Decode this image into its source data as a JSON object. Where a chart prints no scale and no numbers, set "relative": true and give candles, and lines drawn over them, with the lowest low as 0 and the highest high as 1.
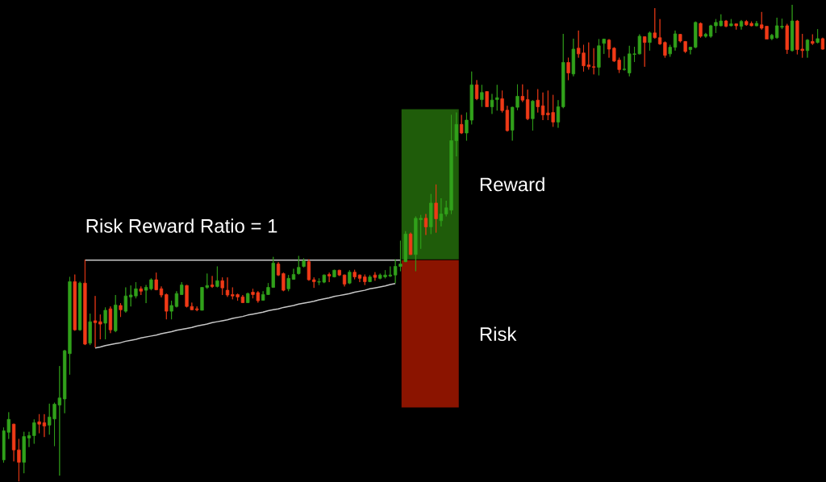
{
  "chart_data": {
    "type": "candlestick",
    "relative": true,
    "categories": [
      null,
      null,
      null,
      null,
      null,
      null,
      null,
      null,
      null,
      null,
      null,
      null,
      null,
      null,
      null,
      null,
      null,
      null,
      null,
      null,
      null,
      null,
      null,
      null,
      null,
      null,
      null,
      null,
      null,
      null,
      null,
      null,
      null,
      null,
      null,
      null,
      null,
      null,
      null,
      null,
      null,
      null,
      null,
      null,
      null,
      null,
      null,
      null,
      null,
      null,
      null,
      null,
      null,
      null,
      null,
      null,
      null,
      null,
      null,
      null,
      null,
      null,
      null,
      null,
      null,
      null,
      null,
      null,
      null,
      null,
      null,
      null,
      null,
      null,
      null,
      null,
      null,
      null,
      null,
      null,
      null,
      null,
      null,
      null,
      null,
      null,
      null,
      null,
      null,
      null,
      null,
      null,
      null,
      null,
      null,
      null,
      null,
      null,
      null,
      null,
      null,
      null,
      null,
      null,
      null,
      null,
      null,
      null,
      null,
      null,
      null,
      null,
      null,
      null,
      null,
      null,
      null,
      null,
      null,
      null,
      null,
      null,
      null,
      null,
      null,
      null,
      null,
      null,
      null,
      null,
      null,
      null,
      null,
      null,
      null,
      null,
      null,
      null,
      null,
      null,
      null,
      null,
      null,
      null,
      null,
      null,
      null,
      null,
      null,
      null,
      null,
      null,
      null,
      null,
      null,
      null,
      null,
      null,
      null,
      null,
      null,
      null
    ],
    "ohlc": [
      [
        0.045,
        0.113,
        0.039,
        0.106
      ],
      [
        0.103,
        0.145,
        0.089,
        0.13
      ],
      [
        0.12,
        0.121,
        0.042,
        0.066
      ],
      [
        0.066,
        0.089,
        0,
        0.04
      ],
      [
        0.04,
        0.104,
        0.017,
        0.094
      ],
      [
        0.091,
        0.104,
        0.072,
        0.096
      ],
      [
        0.096,
        0.13,
        0.079,
        0.123
      ],
      [
        0.125,
        0.141,
        0.101,
        0.12
      ],
      [
        0.123,
        0.141,
        0.093,
        0.116
      ],
      [
        0.118,
        0.163,
        0.098,
        0.135
      ],
      [
        0.131,
        0.165,
        0.074,
        0.162
      ],
      [
        0.16,
        0.242,
        0.012,
        0.175
      ],
      [
        0.173,
        0.276,
        0.143,
        0.274
      ],
      [
        0.268,
        0.429,
        0.224,
        0.419
      ],
      [
        0.419,
        0.434,
        0.316,
        0.318
      ],
      [
        0.318,
        0.419,
        0.316,
        0.416
      ],
      [
        0.416,
        0.465,
        0.286,
        0.288
      ],
      [
        0.29,
        0.352,
        0.286,
        0.335
      ],
      [
        0.337,
        0.389,
        0.281,
        0.333
      ],
      [
        0.335,
        0.35,
        0.298,
        0.33
      ],
      [
        0.332,
        0.365,
        0.298,
        0.359
      ],
      [
        0.362,
        0.367,
        0.311,
        0.318
      ],
      [
        0.316,
        0.391,
        0.313,
        0.37
      ],
      [
        0.369,
        0.374,
        0.345,
        0.36
      ],
      [
        0.357,
        0.407,
        0.354,
        0.389
      ],
      [
        0.387,
        0.411,
        0.367,
        0.391
      ],
      [
        0.389,
        0.418,
        0.384,
        0.404
      ],
      [
        0.404,
        0.409,
        0.391,
        0.399
      ],
      [
        0.401,
        0.412,
        0.374,
        0.407
      ],
      [
        0.404,
        0.426,
        0.401,
        0.423
      ],
      [
        0.423,
        0.438,
        0.401,
        0.402
      ],
      [
        0.404,
        0.409,
        0.386,
        0.391
      ],
      [
        0.392,
        0.394,
        0.34,
        0.357
      ],
      [
        0.357,
        0.379,
        0.34,
        0.369
      ],
      [
        0.367,
        0.399,
        0.365,
        0.394
      ],
      [
        0.392,
        0.418,
        0.391,
        0.412
      ],
      [
        0.411,
        0.412,
        0.365,
        0.367
      ],
      [
        0.367,
        0.375,
        0.359,
        0.36
      ],
      [
        0.362,
        0.367,
        0.357,
        0.36
      ],
      [
        0.359,
        0.407,
        0.359,
        0.407
      ],
      [
        0.407,
        0.436,
        0.404,
        0.411
      ],
      [
        0.412,
        0.431,
        0.406,
        0.409
      ],
      [
        0.409,
        0.451,
        0.407,
        0.421
      ],
      [
        0.421,
        0.428,
        0.391,
        0.406
      ],
      [
        0.401,
        0.428,
        0.387,
        0.391
      ],
      [
        0.392,
        0.407,
        0.382,
        0.389
      ],
      [
        0.392,
        0.394,
        0.379,
        0.387
      ],
      [
        0.387,
        0.391,
        0.374,
        0.375
      ],
      [
        0.375,
        0.396,
        0.374,
        0.394
      ],
      [
        0.397,
        0.404,
        0.384,
        0.392
      ],
      [
        0.396,
        0.399,
        0.375,
        0.379
      ],
      [
        0.38,
        0.399,
        0.379,
        0.392
      ],
      [
        0.392,
        0.416,
        0.391,
        0.407
      ],
      [
        0.407,
        0.471,
        0.406,
        0.458
      ],
      [
        0.456,
        0.46,
        0.431,
        0.433
      ],
      [
        0.436,
        0.438,
        0.399,
        0.401
      ],
      [
        0.404,
        0.433,
        0.399,
        0.426
      ],
      [
        0.424,
        0.446,
        0.423,
        0.434
      ],
      [
        0.436,
        0.473,
        0.434,
        0.449
      ],
      [
        0.451,
        0.468,
        0.449,
        0.463
      ],
      [
        0.461,
        0.466,
        0.421,
        0.423
      ],
      [
        0.423,
        0.428,
        0.406,
        0.419
      ],
      [
        0.418,
        0.426,
        0.412,
        0.419
      ],
      [
        0.418,
        0.434,
        0.416,
        0.433
      ],
      [
        0.434,
        0.438,
        0.418,
        0.431
      ],
      [
        0.429,
        0.444,
        0.428,
        0.443
      ],
      [
        0.443,
        0.444,
        0.431,
        0.433
      ],
      [
        0.433,
        0.434,
        0.409,
        0.414
      ],
      [
        0.416,
        0.443,
        0.414,
        0.439
      ],
      [
        0.439,
        0.444,
        0.424,
        0.429
      ],
      [
        0.433,
        0.434,
        0.418,
        0.426
      ],
      [
        0.429,
        0.434,
        0.412,
        0.419
      ],
      [
        0.419,
        0.433,
        0.418,
        0.429
      ],
      [
        0.433,
        0.439,
        0.421,
        0.428
      ],
      [
        0.426,
        0.436,
        0.424,
        0.433
      ],
      [
        0.429,
        0.443,
        0.426,
        0.433
      ],
      [
        0.431,
        0.451,
        0.429,
        0.433
      ],
      [
        0.433,
        0.466,
        0.416,
        0.451
      ],
      [
        0.451,
        0.505,
        0.441,
        0.456
      ],
      [
        0.461,
        0.525,
        0.46,
        0.519
      ],
      [
        0.519,
        0.522,
        0.475,
        0.476
      ],
      [
        0.476,
        0.556,
        0.441,
        0.552
      ],
      [
        0.549,
        0.559,
        0.488,
        0.552
      ],
      [
        0.552,
        0.561,
        0.517,
        0.534
      ],
      [
        0.534,
        0.603,
        0.519,
        0.584
      ],
      [
        0.584,
        0.623,
        0.522,
        0.551
      ],
      [
        0.547,
        0.594,
        0.535,
        0.561
      ],
      [
        0.561,
        0.589,
        0.556,
        0.574
      ],
      [
        0.569,
        0.769,
        0.561,
        0.715
      ],
      [
        0.715,
        0.774,
        0.682,
        0.749
      ],
      [
        0.749,
        0.769,
        0.729,
        0.731
      ],
      [
        0.731,
        0.774,
        0.715,
        0.758
      ],
      [
        0.758,
        0.86,
        0.749,
        0.832
      ],
      [
        0.832,
        0.842,
        0.8,
        0.803
      ],
      [
        0.801,
        0.832,
        0.786,
        0.816
      ],
      [
        0.818,
        0.818,
        0.786,
        0.786
      ],
      [
        0.786,
        0.813,
        0.771,
        0.8
      ],
      [
        0.801,
        0.832,
        0.778,
        0.805
      ],
      [
        0.803,
        0.82,
        0.774,
        0.778
      ],
      [
        0.779,
        0.788,
        0.734,
        0.736
      ],
      [
        0.737,
        0.786,
        0.715,
        0.785
      ],
      [
        0.785,
        0.833,
        0.779,
        0.808
      ],
      [
        0.808,
        0.833,
        0.796,
        0.8
      ],
      [
        0.801,
        0.822,
        0.758,
        0.761
      ],
      [
        0.761,
        0.8,
        0.736,
        0.798
      ],
      [
        0.8,
        0.823,
        0.774,
        0.786
      ],
      [
        0.788,
        0.816,
        0.758,
        0.769
      ],
      [
        0.773,
        0.82,
        0.758,
        0.769
      ],
      [
        0.774,
        0.811,
        0.744,
        0.754
      ],
      [
        0.754,
        0.8,
        0.742,
        0.786
      ],
      [
        0.786,
        0.939,
        0.783,
        0.879
      ],
      [
        0.879,
        0.889,
        0.842,
        0.857
      ],
      [
        0.855,
        0.929,
        0.85,
        0.907
      ],
      [
        0.909,
        0.946,
        0.889,
        0.897
      ],
      [
        0.899,
        0.916,
        0.86,
        0.872
      ],
      [
        0.874,
        0.921,
        0.864,
        0.87
      ],
      [
        0.87,
        0.909,
        0.854,
        0.869
      ],
      [
        0.869,
        0.928,
        0.852,
        0.914
      ],
      [
        0.919,
        0.929,
        0.897,
        0.928
      ],
      [
        0.926,
        0.928,
        0.889,
        0.907
      ],
      [
        0.909,
        0.911,
        0.88,
        0.882
      ],
      [
        0.884,
        0.889,
        0.857,
        0.864
      ],
      [
        0.864,
        0.892,
        0.862,
        0.865
      ],
      [
        0.857,
        0.914,
        0.85,
        0.897
      ],
      [
        0.896,
        0.912,
        0.88,
        0.897
      ],
      [
        0.897,
        0.938,
        0.896,
        0.934
      ],
      [
        0.933,
        0.934,
        0.87,
        0.921
      ],
      [
        0.921,
        0.944,
        0.904,
        0.941
      ],
      [
        0.941,
        0.993,
        0.929,
        0.931
      ],
      [
        0.931,
        0.97,
        0.916,
        0.918
      ],
      [
        0.921,
        0.923,
        0.889,
        0.894
      ],
      [
        0.897,
        0.916,
        0.891,
        0.911
      ],
      [
        0.911,
        0.946,
        0.904,
        0.939
      ],
      [
        0.938,
        0.939,
        0.921,
        0.924
      ],
      [
        0.923,
        0.924,
        0.899,
        0.902
      ],
      [
        0.906,
        0.912,
        0.896,
        0.911
      ],
      [
        0.911,
        0.965,
        0.909,
        0.963
      ],
      [
        0.961,
        0.963,
        0.931,
        0.934
      ],
      [
        0.934,
        0.941,
        0.931,
        0.938
      ],
      [
        0.934,
        0.958,
        0.931,
        0.956
      ],
      [
        0.956,
        0.97,
        0.941,
        0.963
      ],
      [
        0.956,
        0.98,
        0.955,
        0.966
      ],
      [
        0.966,
        0.968,
        0.953,
        0.955
      ],
      [
        0.956,
        0.97,
        0.955,
        0.96
      ],
      [
        0.96,
        0.961,
        0.948,
        0.956
      ],
      [
        0.955,
        0.968,
        0.948,
        0.965
      ],
      [
        0.965,
        0.968,
        0.956,
        0.958
      ],
      [
        0.961,
        0.965,
        0.955,
        0.956
      ],
      [
        0.956,
        0.966,
        0.955,
        0.961
      ],
      [
        0.958,
        0.985,
        0.948,
        0.951
      ],
      [
        0.955,
        0.955,
        0.928,
        0.928
      ],
      [
        0.929,
        0.939,
        0.926,
        0.936
      ],
      [
        0.931,
        0.973,
        0.929,
        0.956
      ],
      [
        0.953,
        0.971,
        0.949,
        0.955
      ],
      [
        0.956,
        0.96,
        0.897,
        0.906
      ],
      [
        0.904,
        1,
        0.902,
        0.966
      ],
      [
        0.966,
        0.968,
        0.896,
        0.906
      ],
      [
        0.907,
        0.939,
        0.889,
        0.904
      ],
      [
        0.904,
        0.928,
        0.889,
        0.926
      ],
      [
        0.923,
        0.938,
        0.916,
        0.919
      ],
      [
        0.921,
        0.949,
        0.919,
        0.929
      ],
      [
        0.929,
        0.931,
        0.906,
        0.907
      ]
    ],
    "colors": [
      "#31a11b",
      "#31a11b",
      "#f03a17",
      "#f03a17",
      "#31a11b",
      "#31a11b",
      "#31a11b",
      "#f03a17",
      "#f03a17",
      "#31a11b",
      "#31a11b",
      "#31a11b",
      "#31a11b",
      "#31a11b",
      "#f03a17",
      "#31a11b",
      "#f03a17",
      "#31a11b",
      "#f03a17",
      "#f03a17",
      "#31a11b",
      "#f03a17",
      "#31a11b",
      "#f03a17",
      "#31a11b",
      "#31a11b",
      "#31a11b",
      "#f03a17",
      "#31a11b",
      "#31a11b",
      "#f03a17",
      "#f03a17",
      "#f03a17",
      "#31a11b",
      "#31a11b",
      "#31a11b",
      "#f03a17",
      "#f03a17",
      "#f03a17",
      "#31a11b",
      "#31a11b",
      "#f03a17",
      "#31a11b",
      "#f03a17",
      "#f03a17",
      "#f03a17",
      "#f03a17",
      "#f03a17",
      "#31a11b",
      "#f03a17",
      "#f03a17",
      "#31a11b",
      "#31a11b",
      "#31a11b",
      "#f03a17",
      "#f03a17",
      "#31a11b",
      "#31a11b",
      "#31a11b",
      "#31a11b",
      "#f03a17",
      "#f03a17",
      "#31a11b",
      "#31a11b",
      "#f03a17",
      "#31a11b",
      "#f03a17",
      "#f03a17",
      "#31a11b",
      "#f03a17",
      "#f03a17",
      "#f03a17",
      "#31a11b",
      "#f03a17",
      "#31a11b",
      "#31a11b",
      "#31a11b",
      "#31a11b",
      "#31a11b",
      "#31a11b",
      "#f03a17",
      "#31a11b",
      "#31a11b",
      "#f03a17",
      "#31a11b",
      "#f03a17",
      "#31a11b",
      "#31a11b",
      "#31a11b",
      "#31a11b",
      "#f03a17",
      "#31a11b",
      "#31a11b",
      "#f03a17",
      "#31a11b",
      "#f03a17",
      "#31a11b",
      "#31a11b",
      "#f03a17",
      "#f03a17",
      "#31a11b",
      "#31a11b",
      "#f03a17",
      "#f03a17",
      "#31a11b",
      "#f03a17",
      "#f03a17",
      "#f03a17",
      "#f03a17",
      "#31a11b",
      "#31a11b",
      "#f03a17",
      "#31a11b",
      "#f03a17",
      "#f03a17",
      "#f03a17",
      "#f03a17",
      "#31a11b",
      "#31a11b",
      "#f03a17",
      "#f03a17",
      "#f03a17",
      "#31a11b",
      "#31a11b",
      "#31a11b",
      "#31a11b",
      "#f03a17",
      "#31a11b",
      "#f03a17",
      "#f03a17",
      "#f03a17",
      "#31a11b",
      "#31a11b",
      "#f03a17",
      "#f03a17",
      "#31a11b",
      "#31a11b",
      "#f03a17",
      "#31a11b",
      "#31a11b",
      "#31a11b",
      "#31a11b",
      "#f03a17",
      "#31a11b",
      "#f03a17",
      "#31a11b",
      "#f03a17",
      "#f03a17",
      "#31a11b",
      "#f03a17",
      "#f03a17",
      "#31a11b",
      "#31a11b",
      "#31a11b",
      "#f03a17",
      "#31a11b",
      "#f03a17",
      "#f03a17",
      "#31a11b",
      "#f03a17",
      "#31a11b",
      "#f03a17"
    ],
    "bands": [
      {
        "axis": "y",
        "from": 0.466,
        "to": 0.781,
        "label": "Reward",
        "color": "#1f5c0a"
      },
      {
        "axis": "y",
        "from": 0.155,
        "to": 0.464,
        "label": "Risk",
        "color": "#8b1400"
      }
    ],
    "series": [
      {
        "type": "line",
        "color": "#c8c8c8",
        "values": [
          null,
          null,
          null,
          null,
          null,
          null,
          null,
          null,
          null,
          null,
          null,
          null,
          null,
          null,
          null,
          null,
          0.464,
          0.464,
          0.464,
          0.464,
          0.464,
          0.464,
          0.464,
          0.464,
          0.464,
          0.464,
          0.464,
          0.464,
          0.464,
          0.464,
          0.464,
          0.464,
          0.464,
          0.464,
          0.464,
          0.464,
          0.464,
          0.464,
          0.464,
          0.464,
          0.464,
          0.464,
          0.464,
          0.464,
          0.464,
          0.464,
          0.464,
          0.464,
          0.464,
          0.464,
          0.464,
          0.464,
          0.464,
          0.464,
          0.464,
          0.464,
          0.464,
          0.464,
          0.464,
          0.464,
          0.464,
          0.464,
          0.464,
          0.464,
          0.464,
          0.464,
          0.464,
          0.464,
          0.464,
          0.464,
          0.464,
          0.464,
          0.464,
          0.464,
          0.464,
          0.464,
          0.464,
          0.464,
          0.464,
          null,
          null,
          null,
          null,
          null,
          null,
          null,
          null,
          null,
          null,
          null,
          null,
          null,
          null,
          null,
          null,
          null,
          null,
          null,
          null,
          null,
          null,
          null,
          null,
          null,
          null,
          null,
          null,
          null,
          null,
          null,
          null,
          null,
          null,
          null,
          null,
          null,
          null,
          null,
          null,
          null,
          null,
          null,
          null,
          null,
          null,
          null,
          null,
          null,
          null,
          null,
          null,
          null,
          null,
          null,
          null,
          null,
          null,
          null,
          null,
          null,
          null,
          null,
          null,
          null,
          null,
          null,
          null,
          null,
          null,
          null,
          null,
          null,
          null,
          null,
          null,
          null,
          null,
          null,
          null,
          null,
          null,
          null
        ]
      },
      {
        "type": "line",
        "color": "#c8c8c8",
        "values": [
          null,
          null,
          null,
          null,
          null,
          null,
          null,
          null,
          null,
          null,
          null,
          null,
          null,
          null,
          null,
          null,
          null,
          null,
          0.28,
          0.282,
          0.285,
          0.287,
          0.289,
          0.291,
          0.294,
          0.296,
          0.298,
          0.301,
          0.303,
          0.305,
          0.307,
          0.31,
          0.312,
          0.314,
          0.317,
          0.319,
          0.321,
          0.323,
          0.326,
          0.328,
          0.33,
          0.333,
          0.335,
          0.337,
          0.339,
          0.342,
          0.344,
          0.346,
          0.349,
          0.351,
          0.353,
          0.355,
          0.358,
          0.36,
          0.362,
          0.365,
          0.367,
          0.369,
          0.372,
          0.374,
          0.376,
          0.378,
          0.381,
          0.383,
          0.385,
          0.388,
          0.39,
          0.392,
          0.394,
          0.397,
          0.399,
          0.401,
          0.404,
          0.406,
          0.408,
          0.41,
          0.413,
          0.415,
          null,
          null,
          null,
          null,
          null,
          null,
          null,
          null,
          null,
          null,
          null,
          null,
          null,
          null,
          null,
          null,
          null,
          null,
          null,
          null,
          null,
          null,
          null,
          null,
          null,
          null,
          null,
          null,
          null,
          null,
          null,
          null,
          null,
          null,
          null,
          null,
          null,
          null,
          null,
          null,
          null,
          null,
          null,
          null,
          null,
          null,
          null,
          null,
          null,
          null,
          null,
          null,
          null,
          null,
          null,
          null,
          null,
          null,
          null,
          null,
          null,
          null,
          null,
          null,
          null,
          null,
          null,
          null,
          null,
          null,
          null,
          null,
          null,
          null,
          null,
          null,
          null,
          null,
          null,
          null,
          null,
          null,
          null,
          null
        ]
      }
    ],
    "annotations": [
      "Risk Reward Ratio = 1"
    ]
  }
}
